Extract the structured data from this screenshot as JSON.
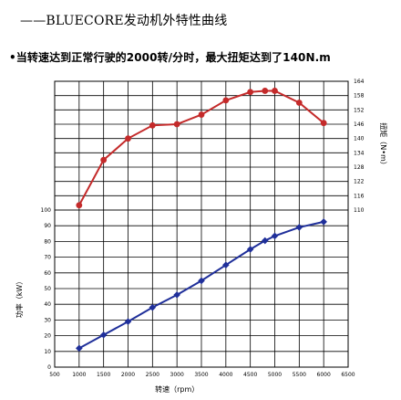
{
  "header": {
    "title": "——BLUECORE发动机外特性曲线",
    "subtitle": "•当转速达到正常行驶的2000转/分时，最大扭矩达到了140N.m"
  },
  "chart_data": {
    "type": "line",
    "xlabel": "转速（rpm）",
    "x_ticks": [
      500,
      1000,
      1500,
      2000,
      2500,
      3000,
      3500,
      4000,
      4500,
      5000,
      5500,
      6000,
      6500
    ],
    "xlim": [
      500,
      6500
    ],
    "grid": true,
    "panels": [
      {
        "name": "torque",
        "axis_side": "right",
        "ylabel": "扭矩（N•m）",
        "ylim": [
          110,
          164
        ],
        "y_ticks": [
          110,
          116,
          122,
          128,
          134,
          140,
          146,
          152,
          158,
          164
        ],
        "series": [
          {
            "color": "#c42a2a",
            "x": [
              1000,
              1500,
              2000,
              2500,
              3000,
              3500,
              4000,
              4500,
              4800,
              5000,
              5500,
              6000
            ],
            "y": [
              112,
              131,
              140,
              145.5,
              146,
              150,
              156,
              159.5,
              160,
              160,
              155,
              146.5
            ]
          }
        ]
      },
      {
        "name": "power",
        "axis_side": "left",
        "ylabel": "功率（kW）",
        "ylim": [
          0,
          100
        ],
        "y_ticks": [
          0,
          10,
          20,
          30,
          40,
          50,
          60,
          70,
          80,
          90,
          100
        ],
        "series": [
          {
            "color": "#1f2f9a",
            "x": [
              1000,
              1500,
              2000,
              2500,
              3000,
              3500,
              4000,
              4500,
              4800,
              5000,
              5500,
              6000
            ],
            "y": [
              12,
              20.5,
              29,
              38,
              46,
              55,
              65,
              75,
              80.5,
              83.5,
              89,
              92.5
            ]
          }
        ]
      }
    ]
  }
}
